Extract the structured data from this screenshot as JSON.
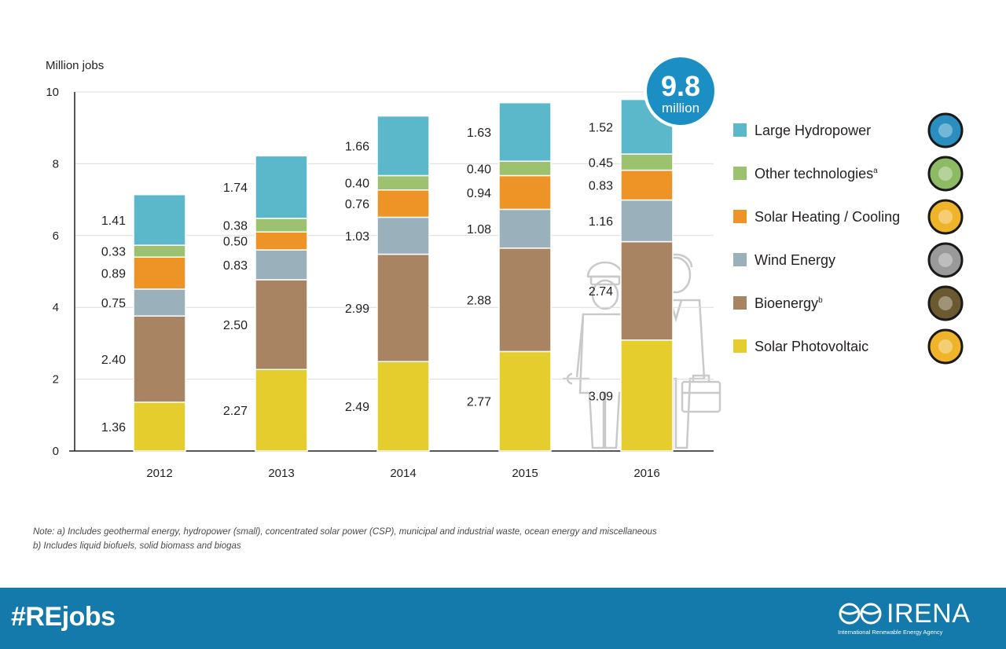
{
  "chart_data": {
    "type": "bar",
    "stacked": true,
    "ylabel": "Million jobs",
    "ylim": [
      0,
      10
    ],
    "yticks": [
      0,
      2,
      4,
      6,
      8,
      10
    ],
    "categories": [
      "2012",
      "2013",
      "2014",
      "2015",
      "2016"
    ],
    "series": [
      {
        "name": "Solar Photovoltaic",
        "color": "#e5cd2e",
        "icon_color": "#f0b42a",
        "values": [
          1.36,
          2.27,
          2.49,
          2.77,
          3.09
        ],
        "labels": [
          "1.36",
          "2.27",
          "2.49",
          "2.77",
          "3.09"
        ]
      },
      {
        "name": "Bioenergy",
        "sup": "b",
        "color": "#a88462",
        "icon_color": "#6b5a2f",
        "values": [
          2.4,
          2.5,
          2.99,
          2.88,
          2.74
        ],
        "labels": [
          "2.40",
          "2.50",
          "2.99",
          "2.88",
          "2.74"
        ]
      },
      {
        "name": "Wind Energy",
        "color": "#9ab0bb",
        "icon_color": "#9a9a9a",
        "values": [
          0.75,
          0.83,
          1.03,
          1.08,
          1.16
        ],
        "labels": [
          "0.75",
          "0.83",
          "1.03",
          "1.08",
          "1.16"
        ]
      },
      {
        "name": "Solar Heating / Cooling",
        "color": "#ee9426",
        "icon_color": "#f0b42a",
        "values": [
          0.89,
          0.5,
          0.76,
          0.94,
          0.83
        ],
        "labels": [
          "0.89",
          "0.50",
          "0.76",
          "0.94",
          "0.83"
        ]
      },
      {
        "name": "Other technologies",
        "sup": "a",
        "color": "#9cc26f",
        "icon_color": "#8cbb64",
        "values": [
          0.33,
          0.38,
          0.4,
          0.4,
          0.45
        ],
        "labels": [
          "0.33",
          "0.38",
          "0.40",
          "0.40",
          "0.45"
        ]
      },
      {
        "name": "Large Hydropower",
        "color": "#5bb8cb",
        "icon_color": "#2a8fbf",
        "values": [
          1.41,
          1.74,
          1.66,
          1.63,
          1.52
        ],
        "labels": [
          "1.41",
          "1.74",
          "1.66",
          "1.63",
          "1.52"
        ]
      }
    ],
    "callout": {
      "value": "9.8",
      "unit": "million",
      "color": "#1b8fc4"
    },
    "legend_position": "right"
  },
  "notes": {
    "a": "Note: a) Includes geothermal energy, hydropower (small), concentrated solar power (CSP), municipal and industrial waste, ocean energy and miscellaneous",
    "b": "b) Includes liquid biofuels, solid biomass and biogas"
  },
  "footer": {
    "hashtag": "#REjobs",
    "brand": "IRENA",
    "brand_sub": "International Renewable Energy Agency",
    "color": "#1479ab"
  }
}
